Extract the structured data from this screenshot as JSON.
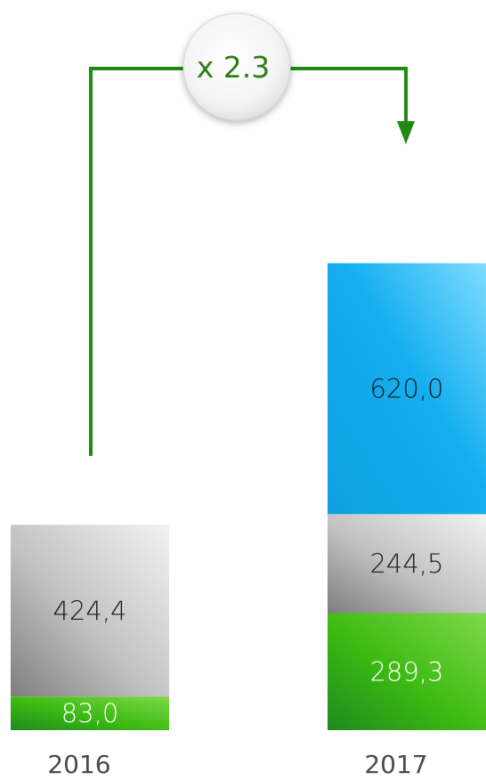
{
  "chart_data": {
    "type": "bar",
    "stacked": true,
    "categories": [
      "2016",
      "2017"
    ],
    "series": [
      {
        "values": [
          83.0,
          289.3
        ],
        "labels": [
          "83,0",
          "289,3"
        ],
        "color": "#3dbb14"
      },
      {
        "values": [
          424.4,
          244.5
        ],
        "labels": [
          "424,4",
          "244,5"
        ],
        "color": "#b8b8b8"
      },
      {
        "values": [
          0,
          620.0
        ],
        "labels": [
          "",
          "620,0"
        ],
        "color": "#1aa9e6"
      }
    ],
    "annotation": {
      "text": "x 2.3",
      "from": "2016",
      "to": "2017"
    },
    "title": "",
    "xlabel": "",
    "ylabel": "",
    "grid": false,
    "legend": false
  },
  "colors": {
    "arrow": "#1f8a12",
    "label_dark": "#1a1a1a",
    "label_light": "#ffffff",
    "year_text": "#4a4a4a"
  }
}
